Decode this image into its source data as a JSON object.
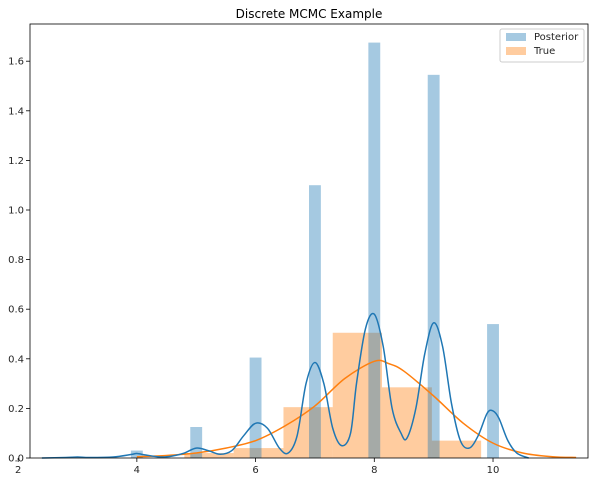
{
  "chart_data": {
    "type": "bar",
    "title": "Discrete MCMC Example",
    "xlabel": "",
    "ylabel": "",
    "xlim": [
      2.2,
      11.6
    ],
    "ylim": [
      0,
      1.75
    ],
    "xticks": [
      2,
      4,
      6,
      8,
      10
    ],
    "yticks": [
      0.0,
      0.2,
      0.4,
      0.6,
      0.8,
      1.0,
      1.2,
      1.4,
      1.6
    ],
    "ytick_labels": [
      "0.0",
      "0.2",
      "0.4",
      "0.6",
      "0.8",
      "1.0",
      "1.2",
      "1.4",
      "1.6"
    ],
    "grid": false,
    "legend": {
      "placement": "top-right",
      "entries": [
        "Posterior",
        "True"
      ]
    },
    "colors": {
      "posterior": "#1f77b4",
      "true": "#ff7f0e"
    },
    "series": [
      {
        "name": "Posterior",
        "kind": "histogram",
        "bar_width": 0.2,
        "bars": [
          {
            "x": 4,
            "y": 0.03
          },
          {
            "x": 5,
            "y": 0.125
          },
          {
            "x": 6,
            "y": 0.405
          },
          {
            "x": 7,
            "y": 1.1
          },
          {
            "x": 8,
            "y": 1.675
          },
          {
            "x": 9,
            "y": 1.545
          },
          {
            "x": 10,
            "y": 0.54
          }
        ]
      },
      {
        "name": "True",
        "kind": "histogram",
        "bins": [
          {
            "x0": 4.8,
            "x1": 5.63,
            "y": 0.02
          },
          {
            "x0": 5.63,
            "x1": 6.47,
            "y": 0.04
          },
          {
            "x0": 6.47,
            "x1": 7.3,
            "y": 0.205
          },
          {
            "x0": 7.3,
            "x1": 8.13,
            "y": 0.505
          },
          {
            "x0": 8.13,
            "x1": 8.97,
            "y": 0.285
          },
          {
            "x0": 8.97,
            "x1": 9.8,
            "y": 0.07
          }
        ]
      },
      {
        "name": "Posterior KDE",
        "kind": "line",
        "x": [
          2.4,
          2.8,
          3.0,
          3.2,
          3.6,
          3.9,
          4.0,
          4.15,
          4.4,
          4.6,
          4.8,
          5.0,
          5.2,
          5.4,
          5.6,
          5.8,
          6.0,
          6.2,
          6.4,
          6.55,
          6.7,
          6.85,
          7.0,
          7.15,
          7.3,
          7.45,
          7.6,
          7.7,
          7.85,
          8.0,
          8.15,
          8.3,
          8.45,
          8.55,
          8.7,
          8.85,
          9.0,
          9.15,
          9.3,
          9.45,
          9.6,
          9.75,
          9.9,
          10.0,
          10.1,
          10.25,
          10.4,
          10.6
        ],
        "y": [
          0.0,
          0.002,
          0.004,
          0.002,
          0.004,
          0.014,
          0.018,
          0.012,
          0.004,
          0.008,
          0.02,
          0.04,
          0.03,
          0.015,
          0.03,
          0.09,
          0.14,
          0.12,
          0.04,
          0.02,
          0.09,
          0.3,
          0.385,
          0.3,
          0.12,
          0.05,
          0.1,
          0.3,
          0.52,
          0.58,
          0.45,
          0.2,
          0.1,
          0.08,
          0.2,
          0.42,
          0.545,
          0.45,
          0.22,
          0.07,
          0.04,
          0.09,
          0.18,
          0.19,
          0.16,
          0.07,
          0.02,
          0.0
        ]
      },
      {
        "name": "True KDE",
        "kind": "line",
        "x": [
          4.0,
          4.5,
          5.0,
          5.5,
          6.0,
          6.5,
          7.0,
          7.5,
          8.0,
          8.25,
          8.5,
          9.0,
          9.5,
          10.0,
          10.5,
          11.0,
          11.4
        ],
        "y": [
          0.005,
          0.01,
          0.02,
          0.04,
          0.07,
          0.13,
          0.21,
          0.32,
          0.39,
          0.38,
          0.35,
          0.25,
          0.14,
          0.06,
          0.02,
          0.005,
          0.002
        ]
      }
    ]
  }
}
